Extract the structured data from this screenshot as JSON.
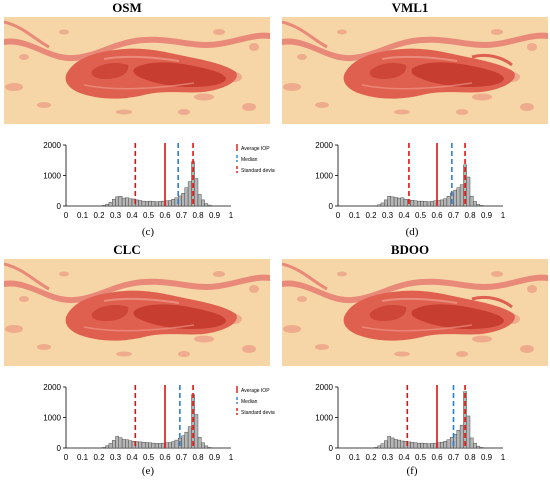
{
  "panels": [
    {
      "title": "OSM",
      "label": "(c)"
    },
    {
      "title": "VML1",
      "label": "(d)"
    },
    {
      "title": "CLC",
      "label": "(e)"
    },
    {
      "title": "BDOO",
      "label": "(f)"
    }
  ],
  "colors": {
    "map_background": "#f6d6a6",
    "map_river": "#e9897a",
    "map_urban": "#e06050",
    "map_core": "#c73d30",
    "bar_fill": "#b5b5b5",
    "average_line": "#e01010",
    "median_line": "#2a7fd4",
    "std_line": "#e01010"
  },
  "chart_data": [
    {
      "type": "bar",
      "panel": "OSM",
      "xlim": [
        0,
        1
      ],
      "ylim": [
        0,
        2000
      ],
      "xticks": [
        "0",
        "0.1",
        "0.2",
        "0.3",
        "0.4",
        "0.5",
        "0.6",
        "0.7",
        "0.8",
        "0.9",
        "1"
      ],
      "yticks": [
        "0",
        "1000",
        "2000"
      ],
      "bin_width": 0.02,
      "bin_start": [
        0.22,
        0.24,
        0.26,
        0.28,
        0.3,
        0.32,
        0.34,
        0.36,
        0.38,
        0.4,
        0.42,
        0.44,
        0.46,
        0.48,
        0.5,
        0.52,
        0.54,
        0.56,
        0.58,
        0.6,
        0.62,
        0.64,
        0.66,
        0.68,
        0.7,
        0.72,
        0.74,
        0.76,
        0.78,
        0.8,
        0.82,
        0.84,
        0.86
      ],
      "values": [
        20,
        60,
        120,
        220,
        300,
        320,
        260,
        270,
        240,
        230,
        200,
        180,
        160,
        150,
        160,
        150,
        140,
        150,
        160,
        170,
        180,
        220,
        270,
        330,
        420,
        600,
        800,
        1450,
        900,
        380,
        200,
        80,
        30
      ],
      "average": 0.6,
      "median": 0.68,
      "std_low": 0.42,
      "std_high": 0.77,
      "legend": [
        "Average IOP",
        "Median",
        "Standard deviation"
      ]
    },
    {
      "type": "bar",
      "panel": "VML1",
      "xlim": [
        0,
        1
      ],
      "ylim": [
        0,
        2000
      ],
      "xticks": [
        "0",
        "0.1",
        "0.2",
        "0.3",
        "0.4",
        "0.5",
        "0.6",
        "0.7",
        "0.8",
        "0.9",
        "1"
      ],
      "yticks": [
        "0",
        "1000",
        "2000"
      ],
      "bin_width": 0.02,
      "bin_start": [
        0.22,
        0.24,
        0.26,
        0.28,
        0.3,
        0.32,
        0.34,
        0.36,
        0.38,
        0.4,
        0.42,
        0.44,
        0.46,
        0.48,
        0.5,
        0.52,
        0.54,
        0.56,
        0.58,
        0.6,
        0.62,
        0.64,
        0.66,
        0.68,
        0.7,
        0.72,
        0.74,
        0.76,
        0.78,
        0.8,
        0.82,
        0.84,
        0.86
      ],
      "values": [
        10,
        40,
        100,
        200,
        320,
        300,
        280,
        260,
        270,
        220,
        200,
        190,
        170,
        160,
        160,
        150,
        140,
        150,
        170,
        180,
        200,
        240,
        320,
        430,
        520,
        600,
        700,
        1350,
        950,
        320,
        150,
        60,
        20
      ],
      "average": 0.6,
      "median": 0.69,
      "std_low": 0.43,
      "std_high": 0.77
    },
    {
      "type": "bar",
      "panel": "CLC",
      "xlim": [
        0,
        1
      ],
      "ylim": [
        0,
        2000
      ],
      "xticks": [
        "0",
        "0.1",
        "0.2",
        "0.3",
        "0.4",
        "0.5",
        "0.6",
        "0.7",
        "0.8",
        "0.9",
        "1"
      ],
      "yticks": [
        "0",
        "1000",
        "2000"
      ],
      "bin_width": 0.02,
      "bin_start": [
        0.22,
        0.24,
        0.26,
        0.28,
        0.3,
        0.32,
        0.34,
        0.36,
        0.38,
        0.4,
        0.42,
        0.44,
        0.46,
        0.48,
        0.5,
        0.52,
        0.54,
        0.56,
        0.58,
        0.6,
        0.62,
        0.64,
        0.66,
        0.68,
        0.7,
        0.72,
        0.74,
        0.76,
        0.78,
        0.8,
        0.82,
        0.84,
        0.86
      ],
      "values": [
        20,
        80,
        150,
        250,
        380,
        340,
        280,
        270,
        240,
        220,
        210,
        200,
        190,
        180,
        170,
        160,
        150,
        150,
        160,
        170,
        180,
        210,
        260,
        320,
        400,
        520,
        700,
        1750,
        1100,
        350,
        170,
        70,
        20
      ],
      "average": 0.6,
      "median": 0.69,
      "std_low": 0.42,
      "std_high": 0.77,
      "legend": [
        "Average IOP",
        "Median",
        "Standard deviation"
      ]
    },
    {
      "type": "bar",
      "panel": "BDOO",
      "xlim": [
        0,
        1
      ],
      "ylim": [
        0,
        2000
      ],
      "xticks": [
        "0",
        "0.1",
        "0.2",
        "0.3",
        "0.4",
        "0.5",
        "0.6",
        "0.7",
        "0.8",
        "0.9",
        "1"
      ],
      "yticks": [
        "0",
        "1000",
        "2000"
      ],
      "bin_width": 0.02,
      "bin_start": [
        0.22,
        0.24,
        0.26,
        0.28,
        0.3,
        0.32,
        0.34,
        0.36,
        0.38,
        0.4,
        0.42,
        0.44,
        0.46,
        0.48,
        0.5,
        0.52,
        0.54,
        0.56,
        0.58,
        0.6,
        0.62,
        0.64,
        0.66,
        0.68,
        0.7,
        0.72,
        0.74,
        0.76,
        0.78,
        0.8,
        0.82,
        0.84,
        0.86
      ],
      "values": [
        20,
        70,
        140,
        240,
        380,
        330,
        280,
        260,
        230,
        220,
        200,
        190,
        170,
        160,
        160,
        150,
        140,
        150,
        160,
        170,
        190,
        220,
        270,
        350,
        450,
        580,
        750,
        1850,
        1050,
        330,
        160,
        60,
        20
      ],
      "average": 0.6,
      "median": 0.7,
      "std_low": 0.42,
      "std_high": 0.77
    }
  ]
}
